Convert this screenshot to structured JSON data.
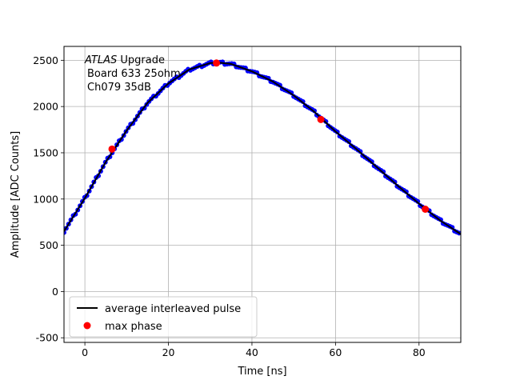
{
  "chart_data": {
    "type": "scatter",
    "xlabel": "Time [ns]",
    "ylabel": "Amplitude [ADC Counts]",
    "xlim": [
      -5,
      90
    ],
    "ylim": [
      -550,
      2650
    ],
    "x_ticks": [
      0,
      20,
      40,
      60,
      80
    ],
    "y_ticks": [
      -500,
      0,
      500,
      1000,
      1500,
      2000,
      2500
    ],
    "grid": true,
    "legend_position": "lower-left",
    "annotation": {
      "line1_italic": "ATLAS",
      "line1_rest": " Upgrade",
      "line2": "Board 633 25ohm",
      "line3": "Ch079 35dB"
    },
    "series": [
      {
        "name": "average interleaved pulse",
        "style": "line",
        "color": "#000000",
        "x": [
          -5,
          0,
          5,
          10,
          15,
          20,
          25,
          30,
          32,
          35,
          40,
          45,
          50,
          55,
          60,
          65,
          70,
          75,
          80,
          85,
          90
        ],
        "y": [
          650,
          1010,
          1400,
          1740,
          2040,
          2250,
          2400,
          2470,
          2475,
          2460,
          2380,
          2270,
          2120,
          1940,
          1730,
          1540,
          1340,
          1140,
          950,
          770,
          620
        ]
      },
      {
        "name": "",
        "style": "scatter",
        "color": "#0000ff",
        "x": [
          -5,
          0,
          5,
          10,
          15,
          20,
          25,
          30,
          32,
          35,
          40,
          45,
          50,
          55,
          60,
          65,
          70,
          75,
          80,
          85,
          90
        ],
        "y": [
          650,
          1010,
          1400,
          1740,
          2040,
          2250,
          2400,
          2470,
          2475,
          2460,
          2380,
          2270,
          2120,
          1940,
          1730,
          1540,
          1340,
          1140,
          950,
          770,
          620
        ]
      },
      {
        "name": "max phase",
        "style": "scatter",
        "color": "#ff0000",
        "x": [
          6.5,
          31.5,
          56.5,
          81.5
        ],
        "y": [
          1540,
          2470,
          1860,
          890
        ]
      }
    ]
  }
}
